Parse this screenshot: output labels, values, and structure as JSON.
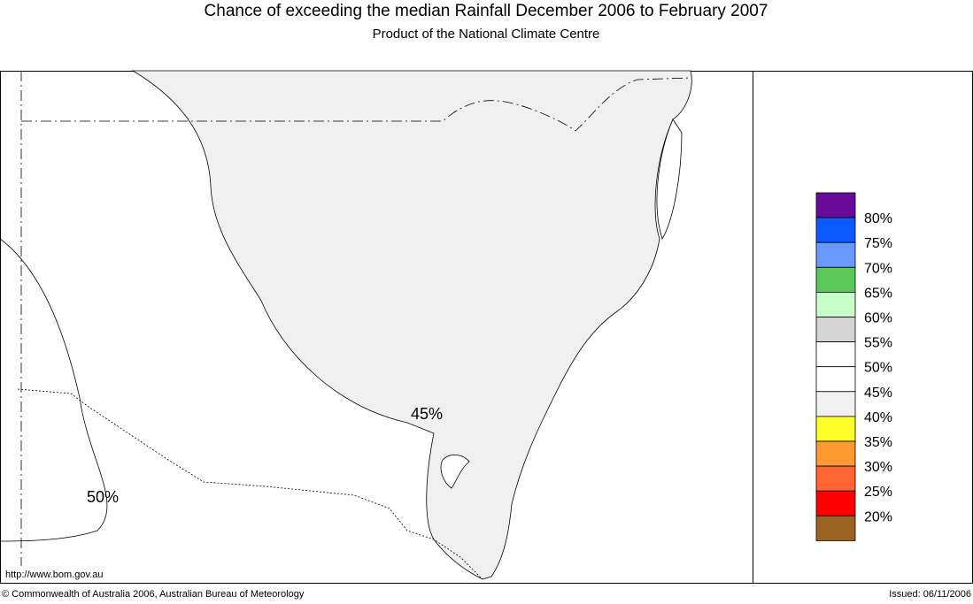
{
  "header": {
    "title": "Chance of exceeding the median Rainfall December 2006 to February 2007",
    "subtitle": "Product of the National Climate Centre"
  },
  "map": {
    "contour_labels": [
      "45%",
      "50%"
    ],
    "url": "http://www.bom.gov.au"
  },
  "legend": {
    "labels": [
      "80%",
      "75%",
      "70%",
      "65%",
      "60%",
      "55%",
      "50%",
      "45%",
      "40%",
      "35%",
      "30%",
      "25%",
      "20%"
    ],
    "colors": [
      "#6a0a9a",
      "#0a5aff",
      "#6a9aff",
      "#5ac85a",
      "#c8ffc8",
      "#d4d4d4",
      "#ffffff",
      "#ffffff",
      "#f0f0f0",
      "#ffff2a",
      "#ff9a32",
      "#ff6432",
      "#ff0000",
      "#9a6420"
    ]
  },
  "footer": {
    "copyright": "© Commonwealth of Australia 2006, Australian Bureau of Meteorology",
    "issued": "Issued: 06/11/2006"
  }
}
